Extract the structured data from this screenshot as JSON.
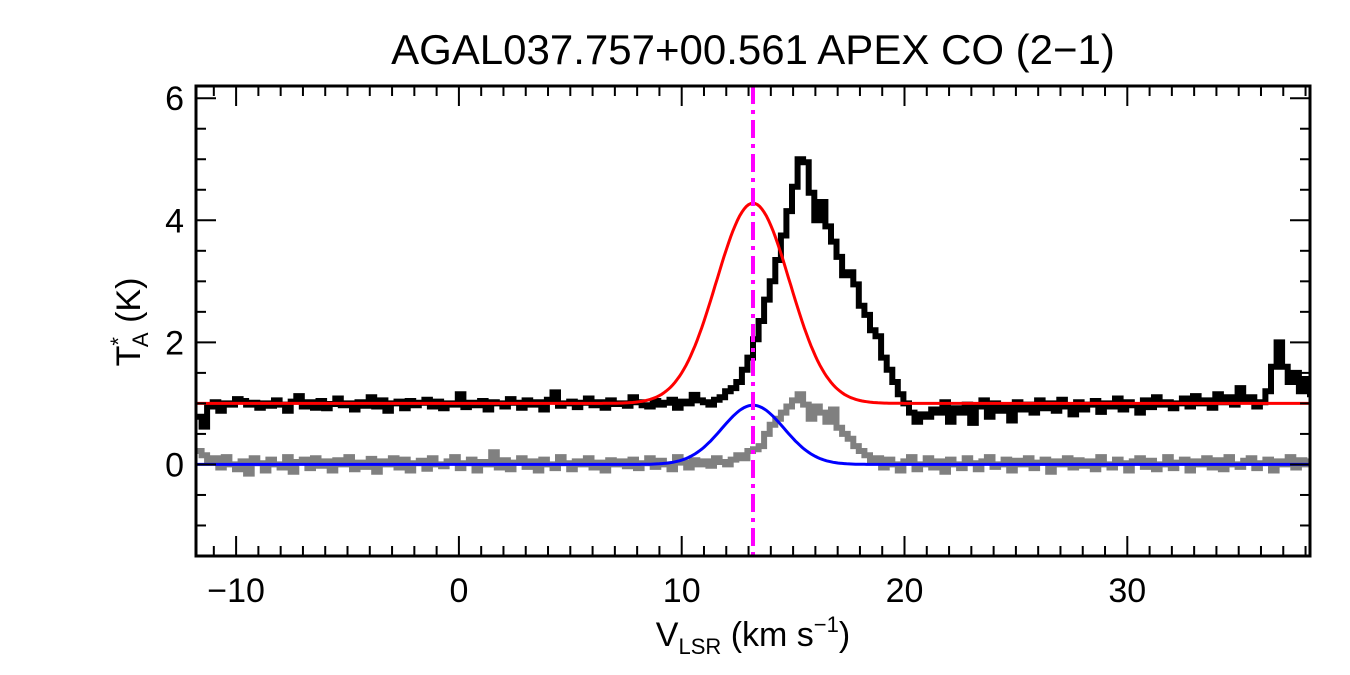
{
  "chart_data": {
    "type": "line",
    "title": "AGAL037.757+00.561  APEX CO (2−1)",
    "ylabel": {
      "main": "T",
      "sup": "*",
      "sub": "A",
      "rest": " (K)"
    },
    "xlabel": {
      "main": "V",
      "sub": "LSR",
      "rest": " (km s",
      "sup": "−1",
      "close": ")"
    },
    "xlim": [
      -11.8,
      38.2
    ],
    "ylim": [
      -1.5,
      6.2
    ],
    "x_ticks": [
      -10,
      0,
      10,
      20,
      30
    ],
    "x_tick_labels": [
      "−10",
      "0",
      "10",
      "20",
      "30"
    ],
    "y_ticks": [
      0,
      2,
      4,
      6
    ],
    "y_tick_labels": [
      "0",
      "2",
      "4",
      "6"
    ],
    "x_minor_step": 1,
    "y_minor_step": 0.5,
    "grid": false,
    "vline": {
      "x": 13.2,
      "color": "#ff00ff",
      "style": "dash-dot"
    },
    "series": [
      {
        "kind": "spectrum",
        "color": "#000000",
        "step": 0.25,
        "x_start": -11.8,
        "values": [
          0.78,
          0.62,
          0.95,
          1.02,
          0.88,
          1.0,
          0.98,
          1.07,
          1.04,
          0.98,
          1.01,
          0.93,
          1.0,
          0.96,
          1.05,
          0.98,
          0.88,
          1.03,
          1.12,
          0.95,
          1.02,
          0.93,
          1.04,
          0.92,
          0.99,
          1.08,
          0.97,
          1.0,
          0.9,
          1.02,
          0.96,
          1.1,
          0.95,
          1.05,
          0.88,
          1.0,
          1.03,
          0.92,
          1.04,
          0.97,
          1.01,
          1.06,
          0.95,
          1.03,
          0.92,
          1.0,
          0.98,
          1.15,
          0.94,
          1.01,
          0.97,
          1.04,
          0.9,
          1.02,
          1.0,
          0.95,
          1.07,
          1.01,
          0.93,
          1.05,
          0.98,
          1.02,
          0.9,
          1.06,
          1.18,
          0.96,
          1.0,
          1.03,
          0.94,
          1.01,
          1.08,
          0.97,
          1.02,
          0.93,
          1.05,
          0.99,
          1.0,
          0.96,
          1.1,
          1.02,
          0.97,
          0.95,
          1.04,
          0.98,
          1.01,
          1.06,
          0.93,
          1.03,
          1.0,
          1.14,
          1.05,
          1.02,
          0.98,
          1.06,
          1.1,
          1.2,
          1.25,
          1.35,
          1.55,
          1.75,
          2.05,
          2.35,
          2.7,
          3.0,
          3.35,
          3.75,
          4.15,
          4.55,
          5.0,
          4.95,
          4.45,
          4.0,
          4.3,
          3.9,
          3.65,
          3.4,
          3.1,
          3.15,
          2.95,
          2.6,
          2.45,
          2.2,
          2.1,
          1.75,
          1.55,
          1.35,
          1.15,
          1.0,
          0.85,
          0.7,
          0.82,
          0.78,
          0.9,
          0.85,
          1.02,
          0.7,
          0.92,
          0.85,
          0.98,
          0.68,
          0.95,
          1.05,
          0.78,
          1.0,
          0.88,
          0.95,
          0.72,
          1.02,
          0.9,
          0.98,
          0.85,
          1.05,
          0.92,
          1.0,
          0.88,
          1.06,
          0.95,
          0.82,
          1.02,
          0.9,
          0.98,
          1.04,
          0.86,
          1.0,
          0.95,
          1.08,
          0.9,
          1.02,
          0.97,
          0.85,
          1.05,
          0.94,
          1.1,
          0.98,
          1.02,
          0.92,
          1.0,
          1.08,
          0.95,
          1.12,
          1.0,
          1.05,
          0.93,
          1.15,
          1.02,
          1.1,
          0.98,
          1.25,
          1.05,
          1.1,
          0.95,
          1.02,
          1.2,
          1.6,
          2.0,
          1.6,
          1.35,
          1.5,
          1.2,
          1.4,
          1.15,
          1.3
        ]
      },
      {
        "kind": "gaussian",
        "color": "#ff0000",
        "amplitude": 3.28,
        "center": 13.2,
        "sigma": 1.65,
        "offset": 1.0
      },
      {
        "kind": "spectrum",
        "color": "#808080",
        "step": 0.25,
        "x_start": -11.8,
        "values": [
          0.22,
          0.15,
          0.05,
          0.1,
          -0.05,
          0.12,
          0.0,
          -0.08,
          0.05,
          -0.15,
          0.1,
          0.02,
          -0.1,
          0.08,
          0.0,
          -0.05,
          0.12,
          -0.12,
          0.04,
          0.08,
          -0.06,
          0.1,
          -0.02,
          0.05,
          -0.1,
          0.07,
          0.0,
          0.12,
          -0.08,
          0.03,
          -0.04,
          0.09,
          -0.12,
          0.05,
          0.0,
          0.1,
          -0.05,
          0.08,
          -0.1,
          0.02,
          0.06,
          -0.07,
          0.1,
          0.0,
          -0.03,
          0.05,
          0.12,
          -0.06,
          0.02,
          0.08,
          -0.1,
          0.04,
          0.0,
          0.2,
          -0.05,
          0.07,
          -0.08,
          0.03,
          0.1,
          -0.04,
          0.05,
          -0.1,
          0.08,
          0.0,
          -0.06,
          0.12,
          0.02,
          -0.08,
          0.05,
          0.0,
          0.1,
          -0.05,
          0.03,
          -0.1,
          0.07,
          0.0,
          0.05,
          -0.03,
          0.08,
          -0.06,
          0.02,
          0.1,
          -0.04,
          0.06,
          0.0,
          -0.08,
          0.12,
          0.03,
          -0.05,
          0.07,
          0.0,
          0.05,
          -0.02,
          0.1,
          0.04,
          0.0,
          0.08,
          0.15,
          0.1,
          0.22,
          0.25,
          0.3,
          0.5,
          0.65,
          0.75,
          0.85,
          0.95,
          1.05,
          1.15,
          0.98,
          0.75,
          0.95,
          0.85,
          0.7,
          0.9,
          0.6,
          0.5,
          0.42,
          0.3,
          0.22,
          0.15,
          0.05,
          0.1,
          -0.05,
          0.08,
          0.0,
          -0.1,
          0.05,
          0.12,
          -0.08,
          0.0,
          0.1,
          -0.05,
          0.05,
          -0.12,
          0.08,
          0.0,
          -0.06,
          0.1,
          0.02,
          -0.08,
          0.05,
          0.12,
          -0.04,
          0.0,
          0.08,
          -0.1,
          0.06,
          0.0,
          0.1,
          -0.06,
          0.03,
          0.08,
          -0.12,
          0.05,
          0.0,
          0.1,
          -0.05,
          0.07,
          -0.02,
          0.05,
          -0.08,
          0.12,
          0.0,
          -0.05,
          0.08,
          0.02,
          -0.1,
          0.05,
          0.1,
          -0.04,
          0.06,
          -0.08,
          0.0,
          0.12,
          -0.06,
          0.03,
          0.08,
          -0.1,
          0.05,
          0.0,
          0.1,
          -0.05,
          0.07,
          -0.08,
          0.12,
          0.0,
          -0.04,
          0.06,
          0.1,
          -0.06,
          0.02,
          0.08,
          -0.1,
          0.05,
          0.0,
          0.12,
          -0.05,
          0.07,
          0.0,
          0.05,
          -0.03
        ]
      },
      {
        "kind": "gaussian",
        "color": "#0000ff",
        "amplitude": 0.97,
        "center": 13.2,
        "sigma": 1.4,
        "offset": 0.0
      }
    ]
  }
}
